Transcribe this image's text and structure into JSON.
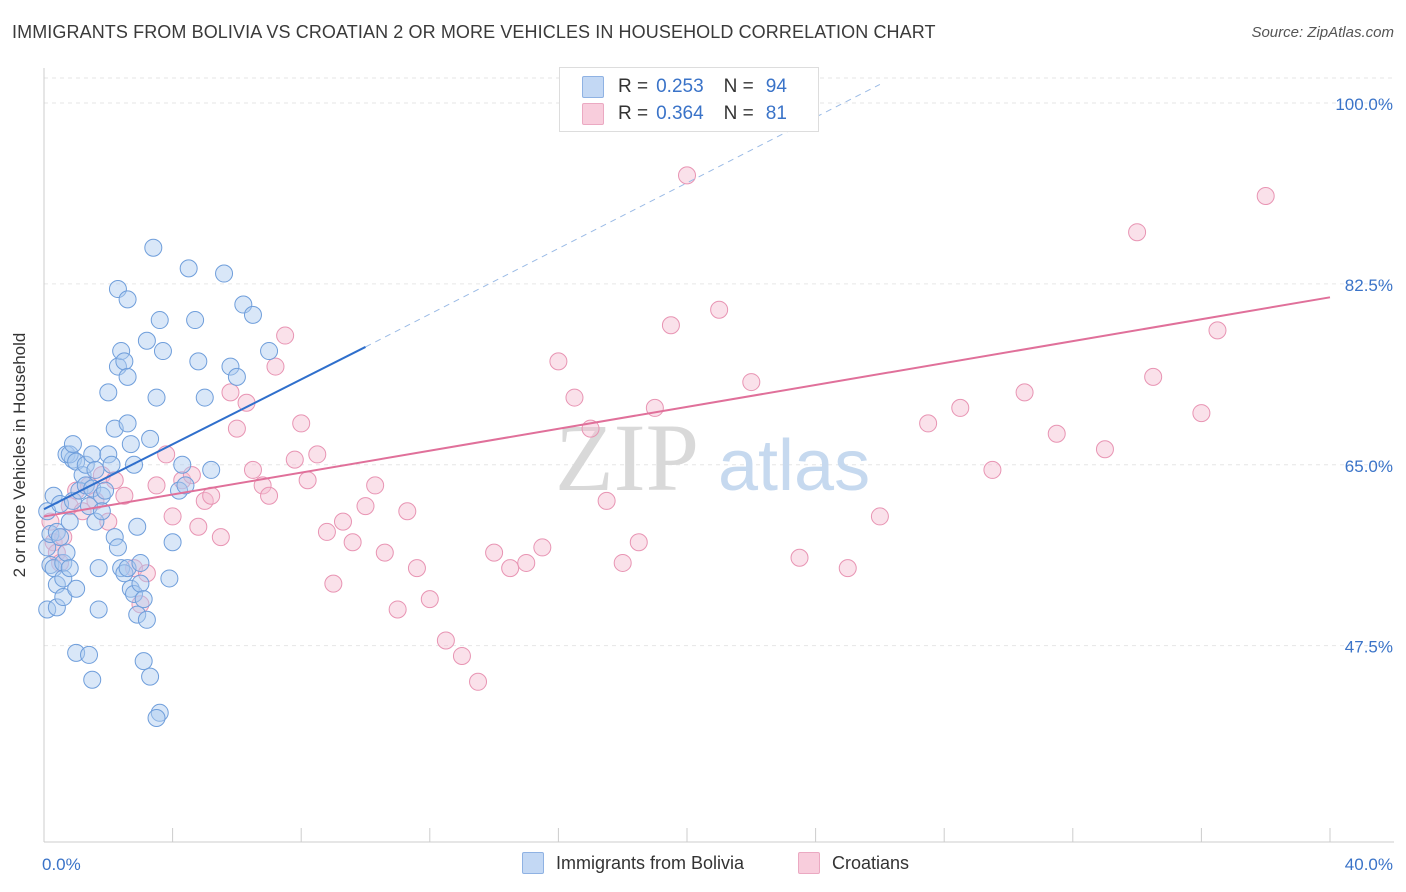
{
  "title": "IMMIGRANTS FROM BOLIVIA VS CROATIAN 2 OR MORE VEHICLES IN HOUSEHOLD CORRELATION CHART",
  "source": "Source: ZipAtlas.com",
  "watermark": {
    "zip": "ZIP",
    "atlas": "atlas"
  },
  "colors": {
    "blue_fill": "#aac9ef",
    "blue_stroke": "#6f9edb",
    "blue_line": "#2f6fcc",
    "pink_fill": "#f4bdd0",
    "pink_stroke": "#e894b3",
    "pink_line": "#e0709a",
    "axis_label": "#3a73c8",
    "grid": "#e6e6e6"
  },
  "legend": {
    "rows": [
      {
        "r_label": "R =",
        "r_value": "0.253",
        "n_label": "N =",
        "n_value": "94",
        "swatch": "blue"
      },
      {
        "r_label": "R =",
        "r_value": "0.364",
        "n_label": "N =",
        "n_value": "81",
        "swatch": "pink"
      }
    ]
  },
  "bottom_legend": [
    {
      "label": "Immigrants from Bolivia",
      "swatch": "blue"
    },
    {
      "label": "Croatians",
      "swatch": "pink"
    }
  ],
  "chart_data": {
    "type": "scatter",
    "title": "IMMIGRANTS FROM BOLIVIA VS CROATIAN 2 OR MORE VEHICLES IN HOUSEHOLD CORRELATION CHART",
    "xlabel": "",
    "ylabel": "2 or more Vehicles in Household",
    "xlim": [
      0,
      40
    ],
    "ylim": [
      28.5,
      103
    ],
    "x_tick_labels": [
      {
        "value": 0,
        "label": "0.0%"
      },
      {
        "value": 40,
        "label": "40.0%"
      }
    ],
    "y_tick_labels": [
      {
        "value": 100,
        "label": "100.0%"
      },
      {
        "value": 82.5,
        "label": "82.5%"
      },
      {
        "value": 65,
        "label": "65.0%"
      },
      {
        "value": 47.5,
        "label": "47.5%"
      }
    ],
    "series": [
      {
        "name": "Immigrants from Bolivia",
        "color": "blue",
        "R": 0.253,
        "N": 94,
        "trend": {
          "x": [
            0,
            10
          ],
          "y": [
            60.7,
            76.4
          ],
          "dashed_to": {
            "x": 26,
            "y": 101.8
          }
        },
        "points": [
          [
            0.1,
            60.5
          ],
          [
            0.1,
            57.0
          ],
          [
            0.1,
            51.0
          ],
          [
            0.2,
            55.3
          ],
          [
            0.2,
            58.3
          ],
          [
            0.3,
            62.0
          ],
          [
            0.3,
            55.0
          ],
          [
            0.4,
            53.4
          ],
          [
            0.4,
            58.5
          ],
          [
            0.4,
            51.2
          ],
          [
            0.5,
            61.2
          ],
          [
            0.5,
            58.0
          ],
          [
            0.6,
            55.5
          ],
          [
            0.6,
            54.0
          ],
          [
            0.6,
            52.2
          ],
          [
            0.7,
            56.5
          ],
          [
            0.8,
            59.5
          ],
          [
            0.8,
            55.0
          ],
          [
            0.9,
            61.5
          ],
          [
            1.0,
            53.0
          ],
          [
            1.0,
            46.8
          ],
          [
            0.7,
            66.0
          ],
          [
            0.9,
            65.5
          ],
          [
            0.8,
            66.0
          ],
          [
            0.9,
            67.0
          ],
          [
            1.0,
            65.3
          ],
          [
            1.2,
            64.0
          ],
          [
            1.1,
            62.5
          ],
          [
            1.3,
            65.0
          ],
          [
            1.3,
            63.0
          ],
          [
            1.4,
            61.0
          ],
          [
            1.5,
            66.0
          ],
          [
            1.5,
            62.7
          ],
          [
            1.6,
            59.5
          ],
          [
            1.6,
            64.5
          ],
          [
            1.7,
            55.0
          ],
          [
            1.7,
            51.0
          ],
          [
            1.8,
            62.0
          ],
          [
            1.8,
            60.5
          ],
          [
            1.4,
            46.6
          ],
          [
            1.5,
            44.2
          ],
          [
            1.9,
            62.5
          ],
          [
            2.0,
            66.0
          ],
          [
            2.1,
            65.0
          ],
          [
            2.2,
            58.0
          ],
          [
            2.3,
            57.0
          ],
          [
            2.4,
            55.0
          ],
          [
            2.5,
            54.5
          ],
          [
            2.6,
            55.0
          ],
          [
            2.7,
            53.0
          ],
          [
            2.8,
            52.5
          ],
          [
            2.9,
            50.5
          ],
          [
            2.2,
            68.5
          ],
          [
            2.0,
            72.0
          ],
          [
            2.3,
            74.5
          ],
          [
            2.4,
            76.0
          ],
          [
            2.5,
            75.0
          ],
          [
            2.6,
            73.5
          ],
          [
            2.6,
            69.0
          ],
          [
            2.7,
            67.0
          ],
          [
            2.8,
            65.0
          ],
          [
            2.9,
            59.0
          ],
          [
            3.0,
            55.5
          ],
          [
            3.0,
            53.5
          ],
          [
            3.1,
            52.0
          ],
          [
            3.2,
            50.0
          ],
          [
            2.3,
            82.0
          ],
          [
            2.6,
            81.0
          ],
          [
            3.2,
            77.0
          ],
          [
            3.4,
            86.0
          ],
          [
            3.6,
            79.0
          ],
          [
            3.7,
            76.0
          ],
          [
            3.3,
            67.5
          ],
          [
            3.5,
            71.5
          ],
          [
            3.9,
            54.0
          ],
          [
            4.0,
            57.5
          ],
          [
            4.2,
            62.5
          ],
          [
            4.3,
            65.0
          ],
          [
            4.4,
            63.0
          ],
          [
            4.5,
            84.0
          ],
          [
            4.7,
            79.0
          ],
          [
            4.8,
            75.0
          ],
          [
            5.0,
            71.5
          ],
          [
            5.2,
            64.5
          ],
          [
            5.6,
            83.5
          ],
          [
            5.8,
            74.5
          ],
          [
            6.0,
            73.5
          ],
          [
            6.2,
            80.5
          ],
          [
            6.5,
            79.5
          ],
          [
            7.0,
            76.0
          ],
          [
            3.1,
            46.0
          ],
          [
            3.3,
            44.5
          ],
          [
            3.6,
            41.0
          ],
          [
            3.5,
            40.5
          ]
        ]
      },
      {
        "name": "Croatians",
        "color": "pink",
        "R": 0.364,
        "N": 81,
        "trend": {
          "x": [
            0,
            40
          ],
          "y": [
            60.0,
            81.2
          ]
        },
        "points": [
          [
            0.2,
            59.5
          ],
          [
            0.3,
            57.5
          ],
          [
            0.4,
            56.5
          ],
          [
            0.5,
            55.5
          ],
          [
            0.6,
            58.0
          ],
          [
            0.8,
            61.0
          ],
          [
            1.0,
            62.5
          ],
          [
            1.2,
            60.5
          ],
          [
            1.4,
            63.0
          ],
          [
            1.6,
            61.5
          ],
          [
            1.8,
            64.0
          ],
          [
            2.0,
            59.5
          ],
          [
            2.2,
            63.5
          ],
          [
            2.5,
            62.0
          ],
          [
            2.8,
            55.0
          ],
          [
            3.0,
            51.5
          ],
          [
            3.2,
            54.5
          ],
          [
            3.5,
            63.0
          ],
          [
            3.8,
            66.0
          ],
          [
            4.0,
            60.0
          ],
          [
            4.3,
            63.5
          ],
          [
            4.6,
            64.0
          ],
          [
            4.8,
            59.0
          ],
          [
            5.0,
            61.5
          ],
          [
            5.2,
            62.0
          ],
          [
            5.5,
            58.0
          ],
          [
            5.8,
            72.0
          ],
          [
            6.0,
            68.5
          ],
          [
            6.3,
            71.0
          ],
          [
            6.5,
            64.5
          ],
          [
            6.8,
            63.0
          ],
          [
            7.0,
            62.0
          ],
          [
            7.2,
            74.5
          ],
          [
            7.5,
            77.5
          ],
          [
            7.8,
            65.5
          ],
          [
            8.0,
            69.0
          ],
          [
            8.2,
            63.5
          ],
          [
            8.5,
            66.0
          ],
          [
            8.8,
            58.5
          ],
          [
            9.0,
            53.5
          ],
          [
            9.3,
            59.5
          ],
          [
            9.6,
            57.5
          ],
          [
            10.0,
            61.0
          ],
          [
            10.3,
            63.0
          ],
          [
            10.6,
            56.5
          ],
          [
            11.0,
            51.0
          ],
          [
            11.3,
            60.5
          ],
          [
            11.6,
            55.0
          ],
          [
            12.0,
            52.0
          ],
          [
            12.5,
            48.0
          ],
          [
            13.0,
            46.5
          ],
          [
            13.5,
            44.0
          ],
          [
            14.0,
            56.5
          ],
          [
            14.5,
            55.0
          ],
          [
            15.0,
            55.5
          ],
          [
            15.5,
            57.0
          ],
          [
            16.0,
            75.0
          ],
          [
            16.5,
            71.5
          ],
          [
            17.0,
            68.5
          ],
          [
            17.5,
            61.5
          ],
          [
            18.0,
            55.5
          ],
          [
            18.5,
            57.5
          ],
          [
            19.0,
            70.5
          ],
          [
            19.5,
            78.5
          ],
          [
            20.0,
            93.0
          ],
          [
            21.0,
            80.0
          ],
          [
            22.0,
            73.0
          ],
          [
            23.5,
            56.0
          ],
          [
            25.0,
            55.0
          ],
          [
            26.0,
            60.0
          ],
          [
            27.5,
            69.0
          ],
          [
            28.5,
            70.5
          ],
          [
            29.5,
            64.5
          ],
          [
            30.5,
            72.0
          ],
          [
            31.5,
            68.0
          ],
          [
            33.0,
            66.5
          ],
          [
            34.5,
            73.5
          ],
          [
            36.0,
            70.0
          ],
          [
            38.0,
            91.0
          ],
          [
            36.5,
            78.0
          ],
          [
            34.0,
            87.5
          ]
        ]
      }
    ]
  }
}
